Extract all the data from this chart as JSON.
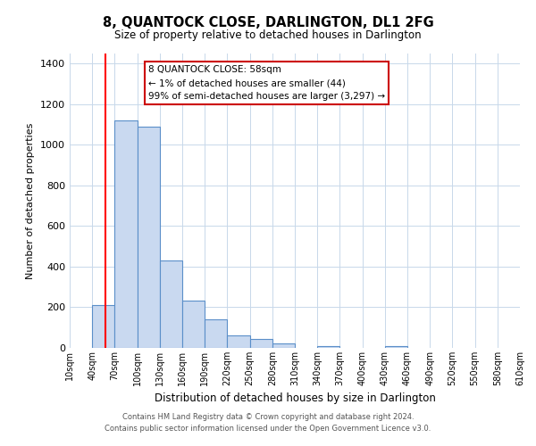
{
  "title": "8, QUANTOCK CLOSE, DARLINGTON, DL1 2FG",
  "subtitle": "Size of property relative to detached houses in Darlington",
  "xlabel": "Distribution of detached houses by size in Darlington",
  "ylabel": "Number of detached properties",
  "bin_labels": [
    "10sqm",
    "40sqm",
    "70sqm",
    "100sqm",
    "130sqm",
    "160sqm",
    "190sqm",
    "220sqm",
    "250sqm",
    "280sqm",
    "310sqm",
    "340sqm",
    "370sqm",
    "400sqm",
    "430sqm",
    "460sqm",
    "490sqm",
    "520sqm",
    "550sqm",
    "580sqm",
    "610sqm"
  ],
  "bin_edges": [
    10,
    40,
    70,
    100,
    130,
    160,
    190,
    220,
    250,
    280,
    310,
    340,
    370,
    400,
    430,
    460,
    490,
    520,
    550,
    580,
    610
  ],
  "bar_heights": [
    0,
    210,
    1120,
    1090,
    430,
    235,
    140,
    60,
    45,
    20,
    0,
    10,
    0,
    0,
    10,
    0,
    0,
    0,
    0,
    0
  ],
  "bar_color": "#c9d9f0",
  "bar_edge_color": "#5b8fc9",
  "red_line_x": 58,
  "annotation_text": "8 QUANTOCK CLOSE: 58sqm\n← 1% of detached houses are smaller (44)\n99% of semi-detached houses are larger (3,297) →",
  "annotation_box_color": "#ffffff",
  "annotation_box_edge_color": "#cc0000",
  "ylim": [
    0,
    1450
  ],
  "yticks": [
    0,
    200,
    400,
    600,
    800,
    1000,
    1200,
    1400
  ],
  "footer_line1": "Contains HM Land Registry data © Crown copyright and database right 2024.",
  "footer_line2": "Contains public sector information licensed under the Open Government Licence v3.0.",
  "background_color": "#ffffff",
  "grid_color": "#c8d8ea"
}
